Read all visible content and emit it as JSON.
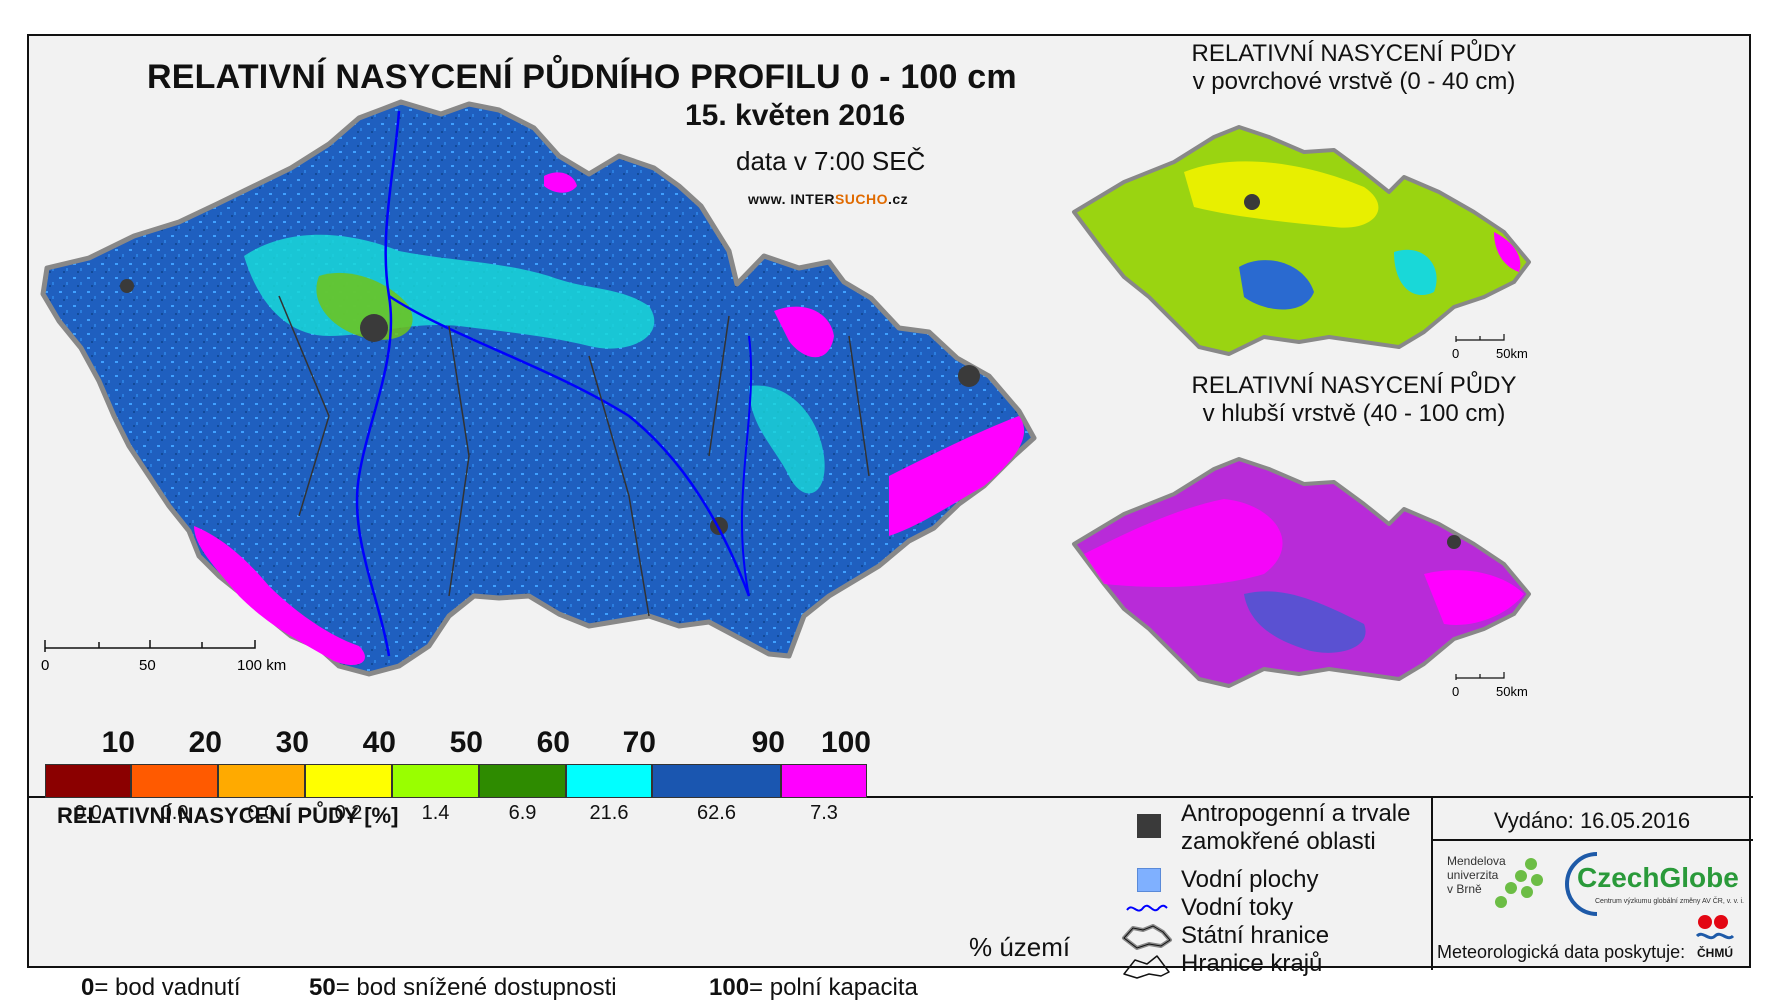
{
  "main": {
    "title": "RELATIVNÍ NASYCENÍ PŮDNÍHO PROFILU 0 - 100 cm",
    "date": "15. květen 2016",
    "time": "data v 7:00 SEČ",
    "website_prefix": "www. INTER",
    "website_highlight": "SUCHO",
    "website_suffix": ".cz",
    "scale_labels": [
      "0",
      "50",
      "100 km"
    ]
  },
  "inset_top": {
    "title_line1": "RELATIVNÍ NASYCENÍ PŮDY",
    "title_line2": "v povrchové vrstvě (0 - 40 cm)",
    "scale_labels": [
      "0",
      "50km"
    ]
  },
  "inset_bottom": {
    "title_line1": "RELATIVNÍ NASYCENÍ PŮDY",
    "title_line2": "v hlubší vrstvě (40 - 100 cm)",
    "scale_labels": [
      "0",
      "50km"
    ]
  },
  "legend": {
    "title": "RELATIVNÍ NASYCENÍ PŮDY [%]",
    "breaks": [
      "10",
      "20",
      "30",
      "40",
      "50",
      "60",
      "70",
      "90",
      "100"
    ],
    "classes": [
      {
        "color": "#8b0000",
        "percent": "0.0"
      },
      {
        "color": "#ff5a00",
        "percent": "0.0"
      },
      {
        "color": "#ffaa00",
        "percent": "0.0"
      },
      {
        "color": "#ffff00",
        "percent": "0.2"
      },
      {
        "color": "#99ff00",
        "percent": "1.4"
      },
      {
        "color": "#2e8b00",
        "percent": "6.9"
      },
      {
        "color": "#00ffff",
        "percent": "21.6"
      },
      {
        "color": "#1a56b0",
        "percent": "62.6"
      },
      {
        "color": "#ff00ff",
        "percent": "7.3"
      }
    ],
    "unit_label": "% území",
    "def_0_value": "0",
    "def_0_text": "= bod vadnutí",
    "def_50_value": "50",
    "def_50_text": "= bod snížené dostupnosti",
    "def_100_value": "100",
    "def_100_text": "= polní kapacita"
  },
  "symbols": {
    "anthropogenic_line1": "Antropogenní a trvale",
    "anthropogenic_line2": "zamokřené oblasti",
    "water_areas": "Vodní plochy",
    "rivers": "Vodní toky",
    "state_border": "Státní hranice",
    "region_border": "Hranice krajů",
    "colors": {
      "anthropogenic": "#3a3a3a",
      "water": "#7fb0ff",
      "river": "#0000ff"
    }
  },
  "footer": {
    "issued": "Vydáno: 16.05.2016",
    "mendel_line1": "Mendelova",
    "mendel_line2": "univerzita",
    "mendel_line3": "v Brně",
    "czechglobe": "CzechGlobe",
    "czechglobe_sub": "Centrum výzkumu globální změny AV ČR, v. v. i.",
    "provider": "Meteorologická data poskytuje:",
    "chmu": "ČHMÚ"
  }
}
